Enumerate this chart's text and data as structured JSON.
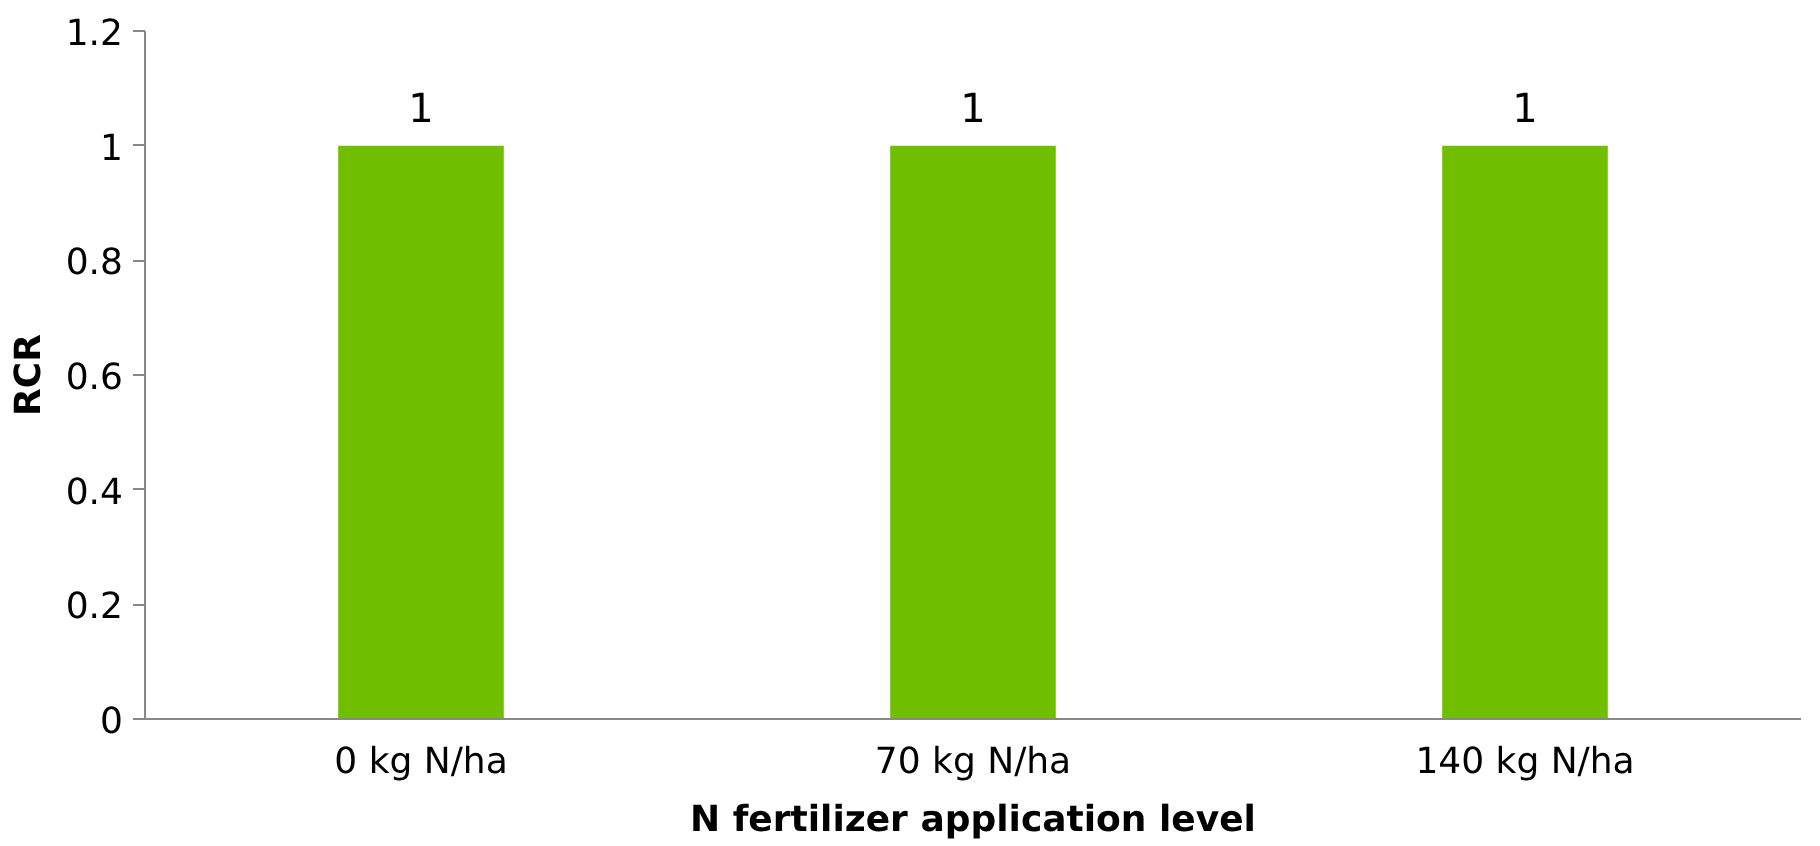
{
  "chart_data": {
    "type": "bar",
    "xlabel": "N fertilizer application level",
    "ylabel": "RCR",
    "categories": [
      "0 kg N/ha",
      "70 kg N/ha",
      "140 kg N/ha"
    ],
    "values": [
      1,
      1,
      1
    ],
    "color": "#6fbf00",
    "ylim": [
      0,
      1.2
    ],
    "yticks": [
      0,
      0.2,
      0.4,
      0.6,
      0.8,
      1,
      1.2
    ],
    "grid": false,
    "data_labels": true
  }
}
